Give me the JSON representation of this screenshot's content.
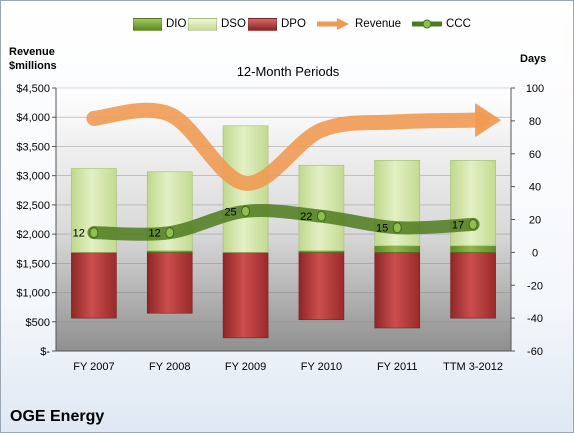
{
  "company": "OGE Energy",
  "chart_data": {
    "type": "bar",
    "title": "12-Month Periods",
    "left_axis_label": [
      "Revenue",
      "$millions"
    ],
    "right_axis_label": "Days",
    "categories": [
      "FY 2007",
      "FY 2008",
      "FY 2009",
      "FY 2010",
      "FY 2011",
      "TTM 3-2012"
    ],
    "left_ticks": [
      "$-",
      "$500",
      "$1,000",
      "$1,500",
      "$2,000",
      "$2,500",
      "$3,000",
      "$3,500",
      "$4,000",
      "$4,500"
    ],
    "right_ticks": [
      "-60",
      "-40",
      "-20",
      "0",
      "20",
      "40",
      "60",
      "80",
      "100"
    ],
    "ylim_left": [
      0,
      4500
    ],
    "ylim_right": [
      -60,
      100
    ],
    "grid": true,
    "legend_position": "top",
    "series": [
      {
        "name": "DIO",
        "type": "stacked-bar",
        "axis": "right",
        "color": "#6f9a2e",
        "values": [
          0,
          1,
          0,
          1,
          4,
          4
        ]
      },
      {
        "name": "DSO",
        "type": "stacked-bar",
        "axis": "right",
        "color": "#cfe4a1",
        "values": [
          51,
          48,
          77,
          52,
          52,
          52
        ]
      },
      {
        "name": "DPO",
        "type": "stacked-bar",
        "axis": "right",
        "color": "#b83a3a",
        "values": [
          -40,
          -37,
          -52,
          -41,
          -46,
          -40
        ]
      },
      {
        "name": "Revenue",
        "type": "line",
        "axis": "left",
        "color": "#ef9a53",
        "values": [
          3980,
          4050,
          2870,
          3780,
          3920,
          3950
        ]
      },
      {
        "name": "CCC",
        "type": "line",
        "axis": "right",
        "color": "#4d7a1e",
        "values": [
          12,
          12,
          25,
          22,
          15,
          17
        ]
      }
    ]
  }
}
